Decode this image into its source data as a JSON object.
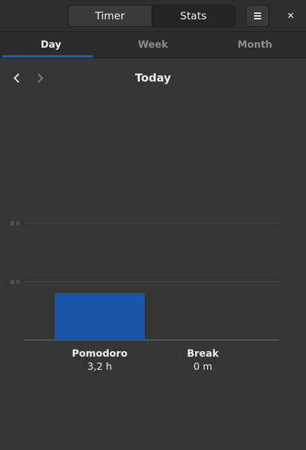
{
  "header": {
    "switcher": [
      {
        "label": "Timer",
        "active": false
      },
      {
        "label": "Stats",
        "active": true
      }
    ],
    "menu_icon": "hamburger-icon",
    "close_icon": "close-icon",
    "close_glyph": "✕"
  },
  "tabs": [
    {
      "label": "Day",
      "active": true
    },
    {
      "label": "Week",
      "active": false
    },
    {
      "label": "Month",
      "active": false
    }
  ],
  "nav": {
    "prev_icon": "chevron-left-icon",
    "next_icon": "chevron-right-icon",
    "next_enabled": false,
    "title": "Today"
  },
  "colors": {
    "accent": "#1c64b5",
    "bar": "#1a56a8",
    "background": "#353535",
    "gridline": "#4a4a4a"
  },
  "chart_data": {
    "type": "bar",
    "categories": [
      "Pomodoro",
      "Break"
    ],
    "values": [
      3.2,
      0
    ],
    "value_labels": [
      "3,2 h",
      "0 m"
    ],
    "y_ticks": [
      {
        "value": 4,
        "label": "4 h"
      },
      {
        "value": 8,
        "label": "8 h"
      }
    ],
    "ylim": [
      0,
      8
    ],
    "grid": true
  }
}
